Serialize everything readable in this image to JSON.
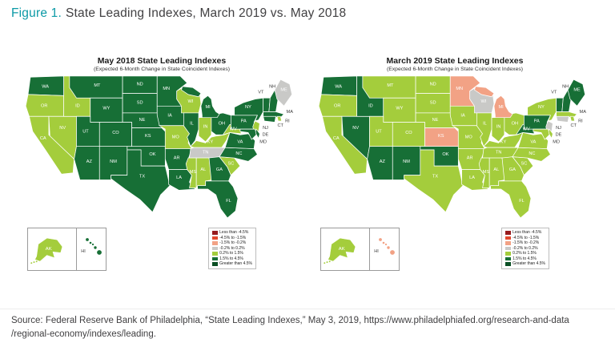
{
  "figure": {
    "label": "Figure 1.",
    "title": "State Leading Indexes, March 2019 vs. May 2018"
  },
  "source": {
    "line1": "Source: Federal Reserve Bank of Philadelphia, “State Leading Indexes,” May 3, 2019, https://www.philadelphiafed.org/research-and-data",
    "line2": "/regional-economy/indexes/leading."
  },
  "legend_bins": [
    {
      "key": "c1",
      "label": "Less than -4.5%",
      "color": "#971b1e"
    },
    {
      "key": "c2",
      "label": "-4.5% to -1.5%",
      "color": "#e2492f"
    },
    {
      "key": "c3",
      "label": "-1.5% to -0.2%",
      "color": "#f2a285"
    },
    {
      "key": "c4",
      "label": "-0.2% to 0.2%",
      "color": "#c9c9c7"
    },
    {
      "key": "c5",
      "label": "0.2% to 1.5%",
      "color": "#a4cd3c"
    },
    {
      "key": "c6",
      "label": "1.5% to 4.5%",
      "color": "#176f36"
    },
    {
      "key": "c7",
      "label": "Greater than 4.5%",
      "color": "#0a4f24"
    }
  ],
  "chart_data": [
    {
      "type": "choropleth",
      "region": "USA states",
      "title": "May 2018 State Leading Indexes",
      "subtitle": "(Expected 6-Month Change in State Coincident Indexes)",
      "note": "value per state is a bin key defined in legend_bins",
      "states": {
        "AK": "c5",
        "AL": "c5",
        "AR": "c6",
        "AZ": "c6",
        "CA": "c5",
        "CO": "c6",
        "CT": "c6",
        "DE": "c6",
        "FL": "c6",
        "GA": "c6",
        "HI": "c6",
        "IA": "c6",
        "ID": "c5",
        "IL": "c6",
        "IN": "c5",
        "KS": "c6",
        "KY": "c5",
        "LA": "c6",
        "MA": "c6",
        "MD": "c6",
        "ME": "c4",
        "MI": "c6",
        "MN": "c6",
        "MO": "c5",
        "MS": "c5",
        "MT": "c6",
        "NC": "c6",
        "ND": "c6",
        "NE": "c6",
        "NH": "c6",
        "NJ": "c5",
        "NM": "c6",
        "NV": "c5",
        "NY": "c6",
        "OH": "c6",
        "OK": "c6",
        "OR": "c5",
        "PA": "c6",
        "RI": "c5",
        "SC": "c5",
        "SD": "c6",
        "TN": "c4",
        "TX": "c6",
        "UT": "c6",
        "VA": "c6",
        "VT": "c6",
        "WA": "c6",
        "WI": "c5",
        "WV": "c5",
        "WY": "c6"
      }
    },
    {
      "type": "choropleth",
      "region": "USA states",
      "title": "March 2019 State Leading Indexes",
      "subtitle": "(Expected 6-Month Change in State Coincident Indexes)",
      "note": "value per state is a bin key defined in legend_bins",
      "states": {
        "AK": "c5",
        "AL": "c5",
        "AR": "c5",
        "AZ": "c6",
        "CA": "c5",
        "CO": "c5",
        "CT": "c4",
        "DE": "c5",
        "FL": "c5",
        "GA": "c5",
        "HI": "c3",
        "IA": "c5",
        "ID": "c6",
        "IL": "c5",
        "IN": "c5",
        "KS": "c3",
        "KY": "c5",
        "LA": "c5",
        "MA": "c5",
        "MD": "c5",
        "ME": "c6",
        "MI": "c3",
        "MN": "c3",
        "MO": "c5",
        "MS": "c5",
        "MT": "c5",
        "NC": "c5",
        "ND": "c5",
        "NE": "c5",
        "NH": "c6",
        "NJ": "c4",
        "NM": "c6",
        "NV": "c6",
        "NY": "c5",
        "OH": "c5",
        "OK": "c6",
        "OR": "c5",
        "PA": "c6",
        "RI": "c5",
        "SC": "c5",
        "SD": "c5",
        "TN": "c5",
        "TX": "c5",
        "UT": "c5",
        "VA": "c5",
        "VT": "c6",
        "WA": "c6",
        "WI": "c4",
        "WV": "c6",
        "WY": "c5"
      }
    }
  ]
}
